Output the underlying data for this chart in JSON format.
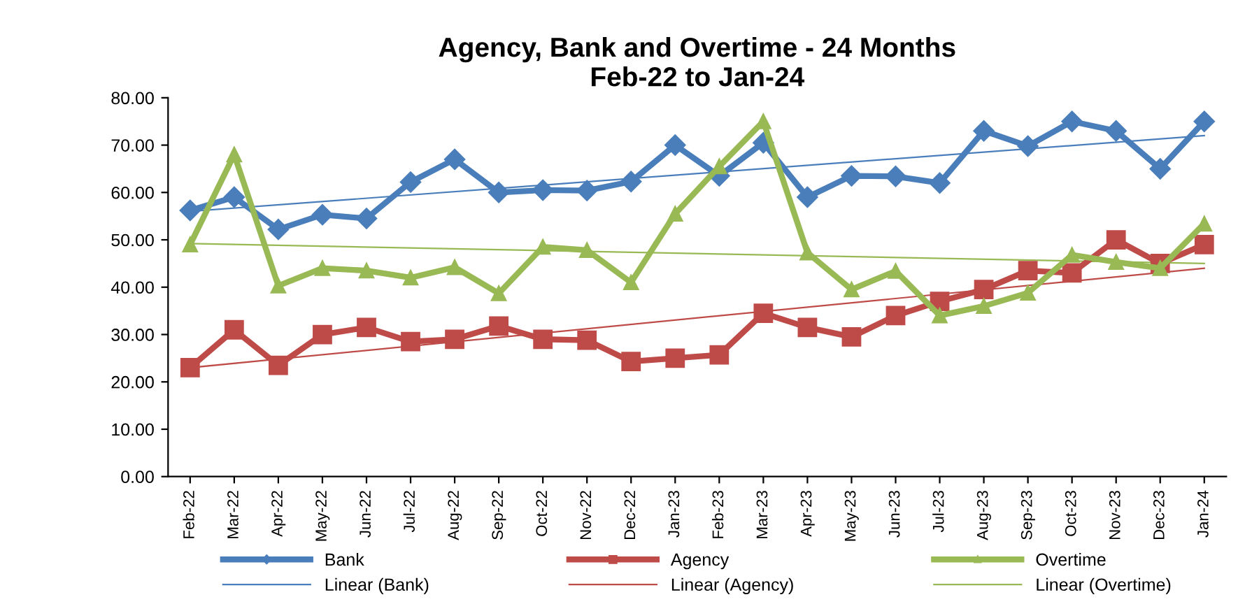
{
  "chart_data": {
    "type": "line",
    "title": "Agency, Bank and Overtime - 24 Months\nFeb-22 to Jan-24",
    "categories": [
      "Feb-22",
      "Mar-22",
      "Apr-22",
      "May-22",
      "Jun-22",
      "Jul-22",
      "Aug-22",
      "Sep-22",
      "Oct-22",
      "Nov-22",
      "Dec-22",
      "Jan-23",
      "Feb-23",
      "Mar-23",
      "Apr-23",
      "May-23",
      "Jun-23",
      "Jul-23",
      "Aug-23",
      "Sep-23",
      "Oct-23",
      "Nov-23",
      "Dec-23",
      "Jan-24"
    ],
    "series": [
      {
        "name": "Bank",
        "color": "#4a7ebb",
        "marker": "diamond",
        "values": [
          56.2,
          59,
          52.2,
          55.3,
          54.5,
          62.2,
          67,
          60,
          60.5,
          60.4,
          62.3,
          70,
          63.5,
          70.5,
          59,
          63.5,
          63.4,
          62,
          73,
          69.8,
          75,
          73,
          65,
          75
        ]
      },
      {
        "name": "Agency",
        "color": "#be4b48",
        "marker": "square",
        "values": [
          23,
          31,
          23.5,
          30,
          31.5,
          28.5,
          29,
          31.8,
          29,
          28.8,
          24.3,
          25,
          25.7,
          34.5,
          31.5,
          29.5,
          34,
          37,
          39.5,
          43.5,
          43,
          50,
          45,
          49
        ]
      },
      {
        "name": "Overtime",
        "color": "#98b954",
        "marker": "triangle",
        "values": [
          49,
          68,
          40.3,
          44,
          43.5,
          42,
          44.2,
          38.7,
          48.5,
          47.8,
          41,
          55.5,
          65.5,
          75,
          47.3,
          39.5,
          43.4,
          34,
          36,
          38.8,
          46.8,
          45.3,
          44,
          53.4
        ]
      },
      {
        "name": "Linear (Bank)",
        "color": "#4a7ebb",
        "marker": "none",
        "values": [
          56,
          null,
          null,
          null,
          null,
          null,
          null,
          null,
          null,
          null,
          null,
          null,
          null,
          null,
          null,
          null,
          null,
          null,
          null,
          null,
          null,
          null,
          null,
          72
        ]
      },
      {
        "name": "Linear (Agency)",
        "color": "#be4b48",
        "marker": "none",
        "values": [
          23,
          null,
          null,
          null,
          null,
          null,
          null,
          null,
          null,
          null,
          null,
          null,
          null,
          null,
          null,
          null,
          null,
          null,
          null,
          null,
          null,
          null,
          null,
          44
        ]
      },
      {
        "name": "Linear (Overtime)",
        "color": "#98b954",
        "marker": "none",
        "values": [
          49.2,
          null,
          null,
          null,
          null,
          null,
          null,
          null,
          null,
          null,
          null,
          null,
          null,
          null,
          null,
          null,
          null,
          null,
          null,
          null,
          null,
          null,
          null,
          45
        ]
      }
    ],
    "ylim": [
      0,
      80
    ],
    "yticks": [
      {
        "value": 0,
        "label": "0.00"
      },
      {
        "value": 10,
        "label": "10.00"
      },
      {
        "value": 20,
        "label": "20.00"
      },
      {
        "value": 30,
        "label": "30.00"
      },
      {
        "value": 40,
        "label": "40.00"
      },
      {
        "value": 50,
        "label": "50.00"
      },
      {
        "value": 60,
        "label": "60.00"
      },
      {
        "value": 70,
        "label": "70.00"
      },
      {
        "value": 80,
        "label": "80.00"
      }
    ],
    "grid": false,
    "legend": "bottom",
    "line_style": "solid"
  }
}
